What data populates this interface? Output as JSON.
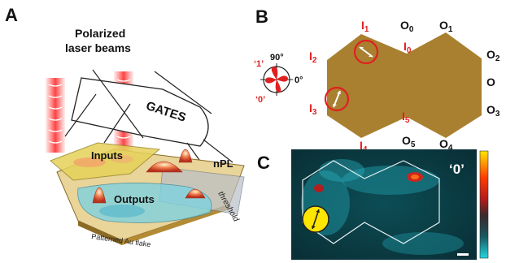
{
  "panelA": {
    "letter": "A",
    "title_line1": "Polarized",
    "title_line2": "laser beams",
    "gate_label": "GATES",
    "inputs_label": "Inputs",
    "outputs_label": "Outputs",
    "npl_label": "nPL",
    "threshold_label": "threshold",
    "flake_label": "Patterned Au flake"
  },
  "panelB": {
    "letter": "B",
    "angle_90": "90°",
    "angle_0": "0°",
    "logic_1": "‘1’",
    "logic_0": "‘0’",
    "inputs": [
      {
        "main": "I",
        "sub": "1"
      },
      {
        "main": "I",
        "sub": "0"
      },
      {
        "main": "I",
        "sub": "2"
      },
      {
        "main": "I",
        "sub": "3"
      },
      {
        "main": "I",
        "sub": "4"
      },
      {
        "main": "I",
        "sub": "5"
      }
    ],
    "outputs": [
      {
        "main": "O",
        "sub": "0"
      },
      {
        "main": "O",
        "sub": "1"
      },
      {
        "main": "O",
        "sub": "2"
      },
      {
        "main": "O",
        "sub": ""
      },
      {
        "main": "O",
        "sub": "3"
      },
      {
        "main": "O",
        "sub": "5"
      },
      {
        "main": "O",
        "sub": "4"
      }
    ],
    "flake_color": "#a8802f"
  },
  "panelC": {
    "letter": "C",
    "result_label": "‘0’",
    "colorbar": [
      "#ffe600",
      "#ff3b00",
      "#b31b1b",
      "#4a2a2a",
      "#163b42",
      "#1fd6e0"
    ]
  }
}
